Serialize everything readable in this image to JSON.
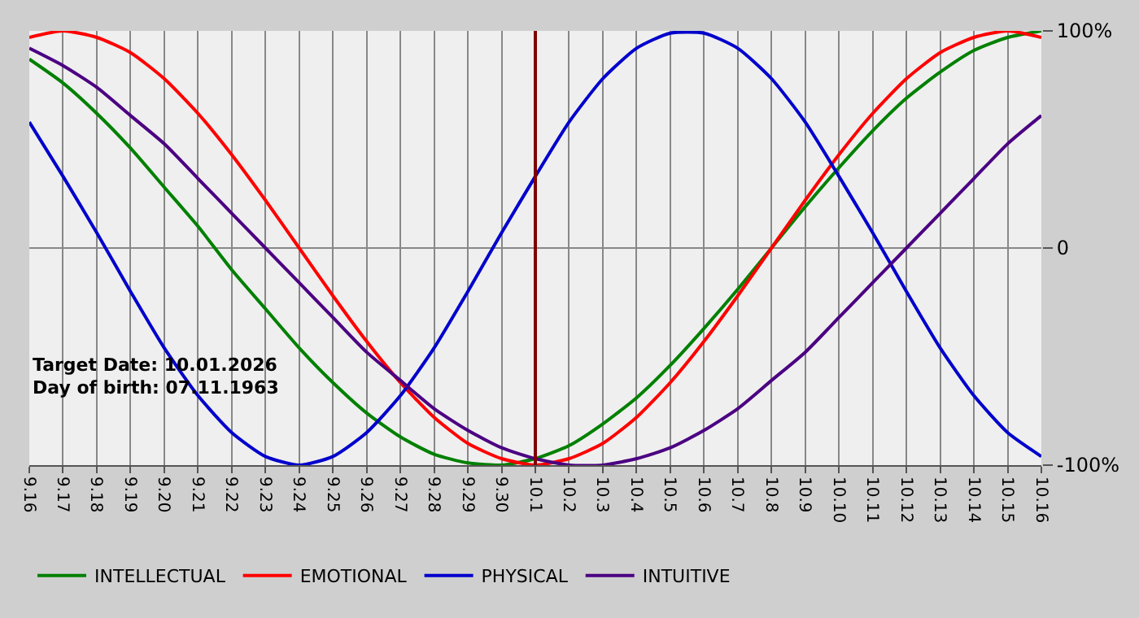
{
  "chart_data": {
    "type": "line",
    "categories": [
      "9.16",
      "9.17",
      "9.18",
      "9.19",
      "9.20",
      "9.21",
      "9.22",
      "9.23",
      "9.24",
      "9.25",
      "9.26",
      "9.27",
      "9.28",
      "9.29",
      "9.30",
      "10.1",
      "10.2",
      "10.3",
      "10.4",
      "10.5",
      "10.6",
      "10.7",
      "10.8",
      "10.9",
      "10.10",
      "10.11",
      "10.12",
      "10.13",
      "10.14",
      "10.15",
      "10.16"
    ],
    "series": [
      {
        "name": "INTELLECTUAL",
        "color": "#008000",
        "values": [
          87,
          76,
          62,
          46,
          28,
          10,
          -10,
          -28,
          -46,
          -62,
          -76,
          -87,
          -95,
          -99,
          -100,
          -97,
          -91,
          -81,
          -69,
          -54,
          -37,
          -19,
          0,
          19,
          37,
          54,
          69,
          81,
          91,
          97,
          100
        ]
      },
      {
        "name": "EMOTIONAL",
        "color": "#ff0000",
        "values": [
          97,
          100,
          97,
          90,
          78,
          62,
          43,
          22,
          0,
          -22,
          -43,
          -62,
          -78,
          -90,
          -97,
          -100,
          -97,
          -90,
          -78,
          -62,
          -43,
          -22,
          0,
          22,
          43,
          62,
          78,
          90,
          97,
          100,
          97
        ]
      },
      {
        "name": "PHYSICAL",
        "color": "#0000cc",
        "values": [
          58,
          33,
          7,
          -20,
          -46,
          -68,
          -85,
          -96,
          -100,
          -96,
          -85,
          -68,
          -46,
          -20,
          7,
          33,
          58,
          78,
          92,
          99,
          99,
          92,
          78,
          58,
          33,
          7,
          -20,
          -46,
          -68,
          -85,
          -96
        ]
      },
      {
        "name": "INTUITIVE",
        "color": "#4b0082",
        "values": [
          92,
          84,
          74,
          61,
          48,
          32,
          16,
          0,
          -16,
          -32,
          -48,
          -61,
          -74,
          -84,
          -92,
          -97,
          -100,
          -100,
          -97,
          -92,
          -84,
          -74,
          -61,
          -48,
          -32,
          -16,
          0,
          16,
          32,
          48,
          61
        ]
      }
    ],
    "ylim": [
      -100,
      100
    ],
    "yticks": [
      {
        "value": 100,
        "label": "100%"
      },
      0,
      {
        "value": -100,
        "label": "-100%"
      }
    ],
    "ref_lines": [
      {
        "axis": "x",
        "value": "10.1",
        "color": "#800000"
      }
    ],
    "annotations": [
      "Target Date: 10.01.2026",
      "Day of birth: 07.11.1963"
    ],
    "grid": true,
    "legend": "bottom left"
  }
}
